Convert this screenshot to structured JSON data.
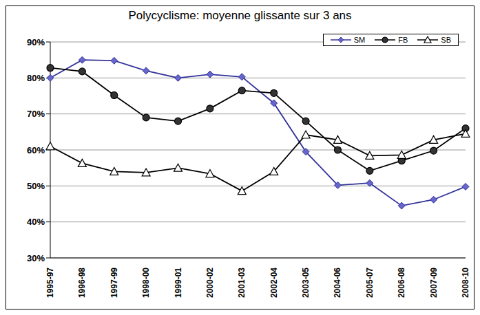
{
  "chart_data": {
    "type": "line",
    "title": "Polycyclisme: moyenne glissante sur 3 ans",
    "categories": [
      "1995-97",
      "1996-98",
      "1997-99",
      "1998-00",
      "1999-01",
      "2000-02",
      "2001-03",
      "2002-04",
      "2003-05",
      "2004-06",
      "2005-07",
      "2006-08",
      "2007-09",
      "2008-10"
    ],
    "series": [
      {
        "name": "SM",
        "color": "#333399",
        "marker": "diamond",
        "values": [
          80,
          85,
          84.8,
          82,
          80,
          81,
          80.3,
          73,
          59.5,
          50.2,
          50.8,
          44.5,
          46.2,
          49.8
        ]
      },
      {
        "name": "FB",
        "color": "#000000",
        "marker": "circle",
        "values": [
          82.8,
          81.8,
          75.2,
          69,
          68,
          71.5,
          76.5,
          75.8,
          68,
          60,
          54.2,
          57,
          59.8,
          66
        ]
      },
      {
        "name": "SB",
        "color": "#000000",
        "marker": "triangle",
        "values": [
          61,
          56.3,
          54,
          53.7,
          55,
          53.4,
          48.6,
          54,
          64.2,
          62.8,
          58.4,
          58.6,
          62.8,
          64.5
        ]
      }
    ],
    "ylim": [
      30,
      90
    ],
    "yticks": [
      {
        "value": 30,
        "label": "30%"
      },
      {
        "value": 40,
        "label": "40%"
      },
      {
        "value": 50,
        "label": "50%"
      },
      {
        "value": 60,
        "label": "60%"
      },
      {
        "value": 70,
        "label": "70%"
      },
      {
        "value": 80,
        "label": "80%"
      },
      {
        "value": 90,
        "label": "90%"
      }
    ],
    "grid": true,
    "legend": "upper right"
  }
}
